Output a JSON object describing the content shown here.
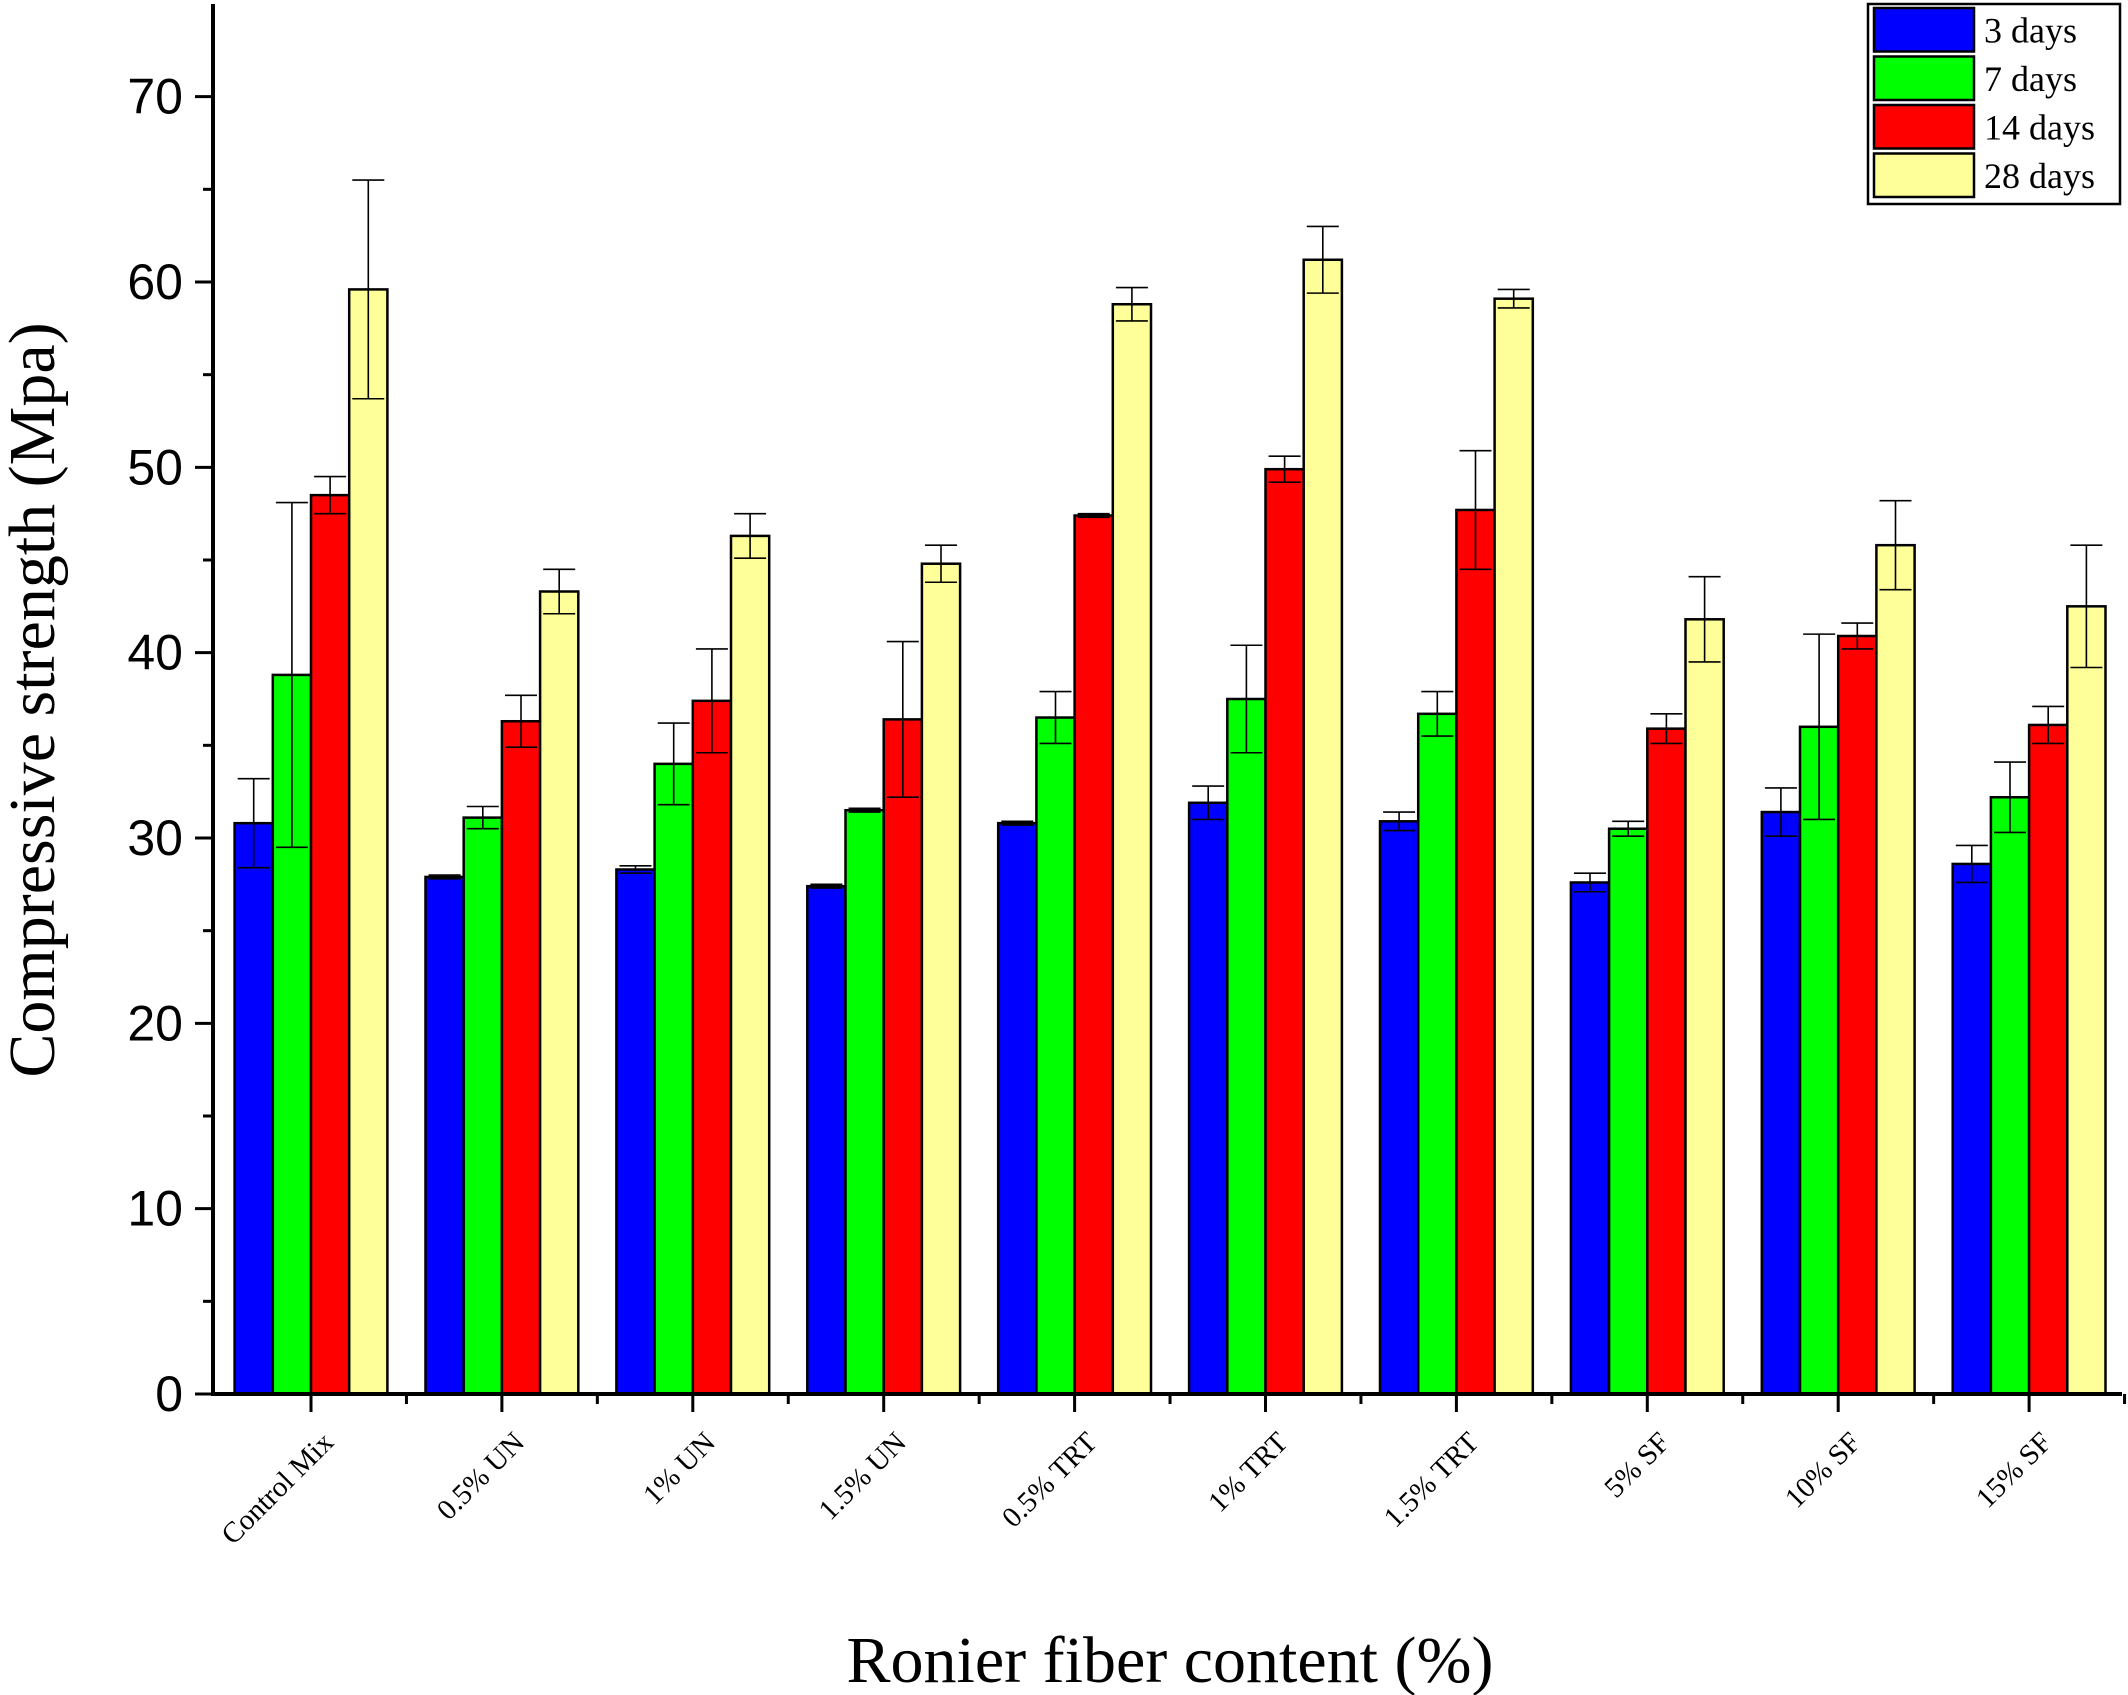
{
  "chart_data": {
    "type": "bar",
    "xlabel": "Ronier fiber content (%)",
    "ylabel": "Compressive strength (Mpa)",
    "ylim": [
      0,
      75
    ],
    "yticks": [
      0,
      10,
      20,
      30,
      40,
      50,
      60,
      70
    ],
    "legend_position": "top-right",
    "categories": [
      "Control Mix",
      "0.5% UN",
      "1% UN",
      "1.5% UN",
      "0.5% TRT",
      "1% TRT",
      "1.5% TRT",
      "5% SF",
      "10% SF",
      "15% SF"
    ],
    "series": [
      {
        "name": "3 days",
        "color": "#0000ff",
        "values": [
          30.8,
          27.9,
          28.3,
          27.4,
          30.8,
          31.9,
          30.9,
          27.6,
          31.4,
          28.6
        ],
        "errors": [
          2.4,
          0.1,
          0.2,
          0.1,
          0.1,
          0.9,
          0.5,
          0.5,
          1.3,
          1.0
        ]
      },
      {
        "name": "7 days",
        "color": "#00ff00",
        "values": [
          38.8,
          31.1,
          34.0,
          31.5,
          36.5,
          37.5,
          36.7,
          30.5,
          36.0,
          32.2
        ],
        "errors": [
          9.3,
          0.6,
          2.2,
          0.1,
          1.4,
          2.9,
          1.2,
          0.4,
          5.0,
          1.9
        ]
      },
      {
        "name": "14 days",
        "color": "#ff0000",
        "values": [
          48.5,
          36.3,
          37.4,
          36.4,
          47.4,
          49.9,
          47.7,
          35.9,
          40.9,
          36.1
        ],
        "errors": [
          1.0,
          1.4,
          2.8,
          4.2,
          0.1,
          0.7,
          3.2,
          0.8,
          0.7,
          1.0
        ]
      },
      {
        "name": "28 days",
        "color": "#ffff99",
        "values": [
          59.6,
          43.3,
          46.3,
          44.8,
          58.8,
          61.2,
          59.1,
          41.8,
          45.8,
          42.5
        ],
        "errors": [
          5.9,
          1.2,
          1.2,
          1.0,
          0.9,
          1.8,
          0.5,
          2.3,
          2.4,
          3.3
        ]
      }
    ]
  }
}
